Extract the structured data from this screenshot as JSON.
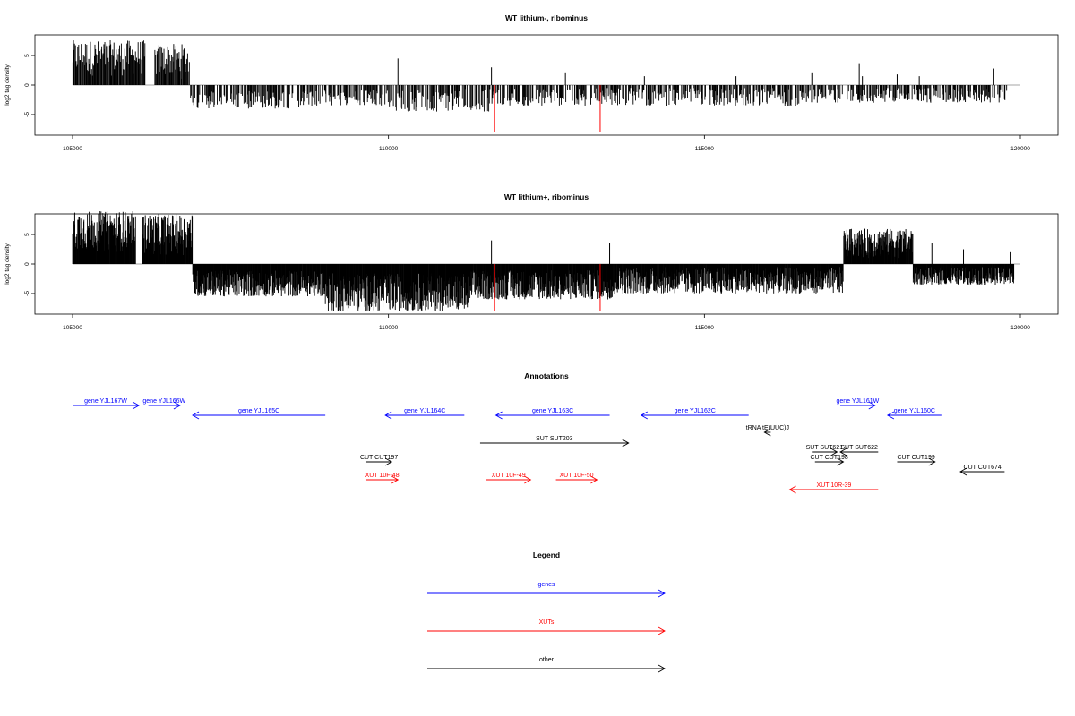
{
  "chart_data": [
    {
      "type": "bar",
      "title": "WT lithium-, ribominus",
      "ylabel": "log2 tag density",
      "xlim": [
        105000,
        120000
      ],
      "ylim": [
        -8.5,
        8.5
      ],
      "xticks": [
        "105000",
        "110000",
        "115000",
        "120000"
      ],
      "xtick_values": [
        105000,
        110000,
        115000,
        120000
      ],
      "yticks": [
        "-5",
        "0",
        "5"
      ],
      "ytick_values": [
        -5,
        0,
        5
      ],
      "zero_line": true,
      "series": [
        {
          "color": "#000000",
          "density": "sparse",
          "segments": [
            {
              "from": 105000,
              "to": 106150,
              "min": 1.5,
              "max": 7.6
            },
            {
              "from": 106300,
              "to": 106850,
              "min": 1.0,
              "max": 7.0
            },
            {
              "from": 106850,
              "to": 108800,
              "min": -4.0,
              "max": -1.0
            },
            {
              "from": 108800,
              "to": 110000,
              "min": -3.5,
              "max": -0.8
            },
            {
              "from": 110000,
              "to": 111600,
              "min": -4.5,
              "max": -0.6
            },
            {
              "from": 111600,
              "to": 114000,
              "min": -3.5,
              "max": -0.5
            },
            {
              "from": 114000,
              "to": 116500,
              "min": -3.5,
              "max": -0.5
            },
            {
              "from": 116500,
              "to": 119800,
              "min": -3.0,
              "max": -0.5
            }
          ],
          "spikes": [
            {
              "x": 110150,
              "value": 4.5
            },
            {
              "x": 111630,
              "value": 3.0
            },
            {
              "x": 112800,
              "value": 2.0
            },
            {
              "x": 114050,
              "value": 1.5
            },
            {
              "x": 115500,
              "value": 1.5
            },
            {
              "x": 116700,
              "value": 2.0
            },
            {
              "x": 117450,
              "value": 3.7
            },
            {
              "x": 117500,
              "value": 1.5
            },
            {
              "x": 118050,
              "value": 1.8
            },
            {
              "x": 118400,
              "value": 1.5
            },
            {
              "x": 119580,
              "value": 2.8
            }
          ]
        },
        {
          "color": "#ff0000",
          "density": "lines",
          "spikes": [
            {
              "x": 111680,
              "value": -8.0
            },
            {
              "x": 113350,
              "value": -8.0
            }
          ]
        }
      ]
    },
    {
      "type": "bar",
      "title": "WT lithium+, ribominus",
      "ylabel": "log2 tag density",
      "xlim": [
        105000,
        120000
      ],
      "ylim": [
        -8.5,
        8.5
      ],
      "xticks": [
        "105000",
        "110000",
        "115000",
        "120000"
      ],
      "xtick_values": [
        105000,
        110000,
        115000,
        120000
      ],
      "yticks": [
        "-5",
        "0",
        "5"
      ],
      "ytick_values": [
        -5,
        0,
        5
      ],
      "zero_line": true,
      "series": [
        {
          "color": "#000000",
          "density": "dense",
          "segments": [
            {
              "from": 105000,
              "to": 106000,
              "min": 2.0,
              "max": 9.0
            },
            {
              "from": 106100,
              "to": 106900,
              "min": 1.5,
              "max": 8.5
            },
            {
              "from": 106900,
              "to": 109000,
              "min": -5.5,
              "max": -1.0
            },
            {
              "from": 109000,
              "to": 111300,
              "min": -8.0,
              "max": -1.5
            },
            {
              "from": 111300,
              "to": 113600,
              "min": -6.0,
              "max": -1.0
            },
            {
              "from": 113600,
              "to": 117200,
              "min": -5.0,
              "max": -0.5
            },
            {
              "from": 117200,
              "to": 118300,
              "min": 1.0,
              "max": 6.0
            },
            {
              "from": 118300,
              "to": 119900,
              "min": -3.5,
              "max": -0.5
            }
          ],
          "spikes": [
            {
              "x": 111630,
              "value": 4.0
            },
            {
              "x": 113500,
              "value": 3.5
            },
            {
              "x": 118600,
              "value": 3.5
            },
            {
              "x": 119100,
              "value": 2.5
            },
            {
              "x": 119850,
              "value": 2.0
            }
          ]
        },
        {
          "color": "#ff0000",
          "density": "lines",
          "spikes": [
            {
              "x": 111680,
              "value": -8.0
            },
            {
              "x": 113350,
              "value": -8.0
            }
          ]
        }
      ]
    }
  ],
  "annotations": {
    "title": "Annotations",
    "items": [
      {
        "label": "gene YJL167W",
        "color": "#0000ff",
        "start": 105000,
        "end": 106050,
        "dir": "right",
        "row": 0
      },
      {
        "label": "gene YJL166W",
        "color": "#0000ff",
        "start": 106200,
        "end": 106700,
        "dir": "right",
        "row": 0
      },
      {
        "label": "gene YJL165C",
        "color": "#0000ff",
        "start": 106900,
        "end": 109000,
        "dir": "left",
        "row": 1
      },
      {
        "label": "gene YJL164C",
        "color": "#0000ff",
        "start": 109950,
        "end": 111200,
        "dir": "left",
        "row": 1
      },
      {
        "label": "gene YJL163C",
        "color": "#0000ff",
        "start": 111700,
        "end": 113500,
        "dir": "left",
        "row": 1
      },
      {
        "label": "gene YJL162C",
        "color": "#0000ff",
        "start": 114000,
        "end": 115700,
        "dir": "left",
        "row": 1
      },
      {
        "label": "gene YJL161W",
        "color": "#0000ff",
        "start": 117150,
        "end": 117700,
        "dir": "right",
        "row": 0
      },
      {
        "label": "gene YJL160C",
        "color": "#0000ff",
        "start": 117900,
        "end": 118750,
        "dir": "left",
        "row": 1
      },
      {
        "label": "tRNA tE(UUC)J",
        "color": "#000000",
        "start": 115950,
        "end": 116050,
        "dir": "left",
        "row": 2
      },
      {
        "label": "SUT SUT203",
        "color": "#000000",
        "start": 111450,
        "end": 113800,
        "dir": "right",
        "row": 3
      },
      {
        "label": "SUT SUT621",
        "color": "#000000",
        "start": 116700,
        "end": 117100,
        "dir": "right",
        "row": 4
      },
      {
        "label": "SUT SUT622",
        "color": "#000000",
        "start": 117150,
        "end": 117750,
        "dir": "left",
        "row": 4
      },
      {
        "label": "CUT CUT197",
        "color": "#000000",
        "start": 109650,
        "end": 110050,
        "dir": "right",
        "row": 5
      },
      {
        "label": "CUT CUT198",
        "color": "#000000",
        "start": 116750,
        "end": 117200,
        "dir": "right",
        "row": 5
      },
      {
        "label": "CUT CUT199",
        "color": "#000000",
        "start": 118050,
        "end": 118650,
        "dir": "right",
        "row": 5
      },
      {
        "label": "CUT CUT674",
        "color": "#000000",
        "start": 119050,
        "end": 119750,
        "dir": "left",
        "row": 6
      },
      {
        "label": "XUT 10F-48",
        "color": "#ff0000",
        "start": 109650,
        "end": 110150,
        "dir": "right",
        "row": 7
      },
      {
        "label": "XUT 10F-49",
        "color": "#ff0000",
        "start": 111550,
        "end": 112250,
        "dir": "right",
        "row": 7
      },
      {
        "label": "XUT 10F-50",
        "color": "#ff0000",
        "start": 112650,
        "end": 113300,
        "dir": "right",
        "row": 7
      },
      {
        "label": "XUT 10R-39",
        "color": "#ff0000",
        "start": 116350,
        "end": 117750,
        "dir": "left",
        "row": 8
      }
    ]
  },
  "legend": {
    "title": "Legend",
    "items": [
      {
        "label": "genes",
        "color": "#0000ff"
      },
      {
        "label": "XUTs",
        "color": "#ff0000"
      },
      {
        "label": "other",
        "color": "#000000"
      }
    ]
  }
}
